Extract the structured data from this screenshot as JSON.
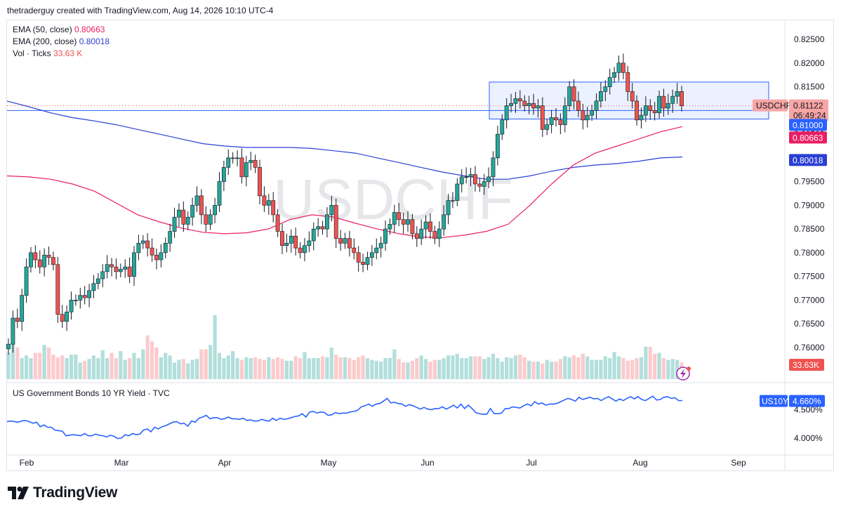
{
  "header": {
    "text": "thetraderguy created with TradingView.com, Aug 14, 2026 10:10 UTC-4"
  },
  "watermark": "USDCHF",
  "legend": {
    "ema50_label": "EMA (50, close)",
    "ema50_value": "0.80663",
    "ema200_label": "EMA (200, close)",
    "ema200_value": "0.80018",
    "vol_label": "Vol · Ticks",
    "vol_value": "33.63 K"
  },
  "indicator": {
    "title": "US Government Bonds 10 YR Yield · TVC"
  },
  "footer": {
    "brand": "TradingView"
  },
  "colors": {
    "up": "#26a69a",
    "down": "#ef5350",
    "ema50": "#e91e63",
    "ema200": "#2a3fd4",
    "box": "#2962ff",
    "yield": "#2962ff"
  },
  "chart_data": [
    {
      "type": "candlestick",
      "symbol": "USDCHF",
      "x_labels": [
        "Feb",
        "Mar",
        "Apr",
        "May",
        "Jun",
        "Jul",
        "Aug",
        "Sep"
      ],
      "y_ticks": [
        "0.82500",
        "0.82000",
        "0.81500",
        "0.81000",
        "0.80500",
        "0.80000",
        "0.79500",
        "0.79000",
        "0.78500",
        "0.78000",
        "0.77500",
        "0.77000",
        "0.76500",
        "0.76000"
      ],
      "ylim": [
        0.7585,
        0.8262
      ],
      "price_labels": {
        "symbol": "USDCHF",
        "last": "0.81122",
        "countdown": "06:49:24",
        "horizontal_line": "0.81000",
        "ema50": "0.80663",
        "ema200": "0.80018",
        "volume": "33.63K"
      },
      "horizontal_line": 0.81,
      "range_box": {
        "top": 0.816,
        "bottom": 0.8082
      },
      "closes": [
        0.7607,
        0.7662,
        0.7655,
        0.771,
        0.777,
        0.78,
        0.7785,
        0.777,
        0.7795,
        0.779,
        0.7775,
        0.767,
        0.7655,
        0.7675,
        0.77,
        0.77,
        0.771,
        0.7705,
        0.772,
        0.7735,
        0.7745,
        0.776,
        0.7775,
        0.777,
        0.776,
        0.7765,
        0.777,
        0.775,
        0.78,
        0.782,
        0.7825,
        0.781,
        0.7795,
        0.7785,
        0.78,
        0.782,
        0.7845,
        0.7875,
        0.789,
        0.786,
        0.7875,
        0.79,
        0.792,
        0.788,
        0.786,
        0.788,
        0.79,
        0.795,
        0.798,
        0.8,
        0.8,
        0.8,
        0.796,
        0.799,
        0.7995,
        0.798,
        0.792,
        0.79,
        0.791,
        0.788,
        0.7845,
        0.7815,
        0.782,
        0.7835,
        0.781,
        0.78,
        0.7815,
        0.7825,
        0.785,
        0.7855,
        0.785,
        0.788,
        0.79,
        0.783,
        0.782,
        0.783,
        0.781,
        0.78,
        0.778,
        0.7775,
        0.779,
        0.78,
        0.781,
        0.782,
        0.785,
        0.786,
        0.7885,
        0.787,
        0.786,
        0.787,
        0.784,
        0.783,
        0.785,
        0.7865,
        0.7845,
        0.783,
        0.785,
        0.788,
        0.791,
        0.791,
        0.7945,
        0.796,
        0.796,
        0.7965,
        0.7945,
        0.794,
        0.795,
        0.796,
        0.8,
        0.805,
        0.808,
        0.811,
        0.8115,
        0.8125,
        0.812,
        0.811,
        0.8115,
        0.8105,
        0.811,
        0.806,
        0.807,
        0.8085,
        0.808,
        0.807,
        0.811,
        0.815,
        0.812,
        0.81,
        0.808,
        0.809,
        0.81,
        0.812,
        0.814,
        0.815,
        0.817,
        0.818,
        0.82,
        0.818,
        0.814,
        0.812,
        0.808,
        0.809,
        0.811,
        0.81,
        0.8095,
        0.813,
        0.8105,
        0.8115,
        0.813,
        0.814,
        0.811
      ],
      "ema50": [
        0.7962,
        0.796,
        0.7955,
        0.7945,
        0.793,
        0.7905,
        0.788,
        0.7865,
        0.7852,
        0.7843,
        0.784,
        0.7842,
        0.785,
        0.787,
        0.788,
        0.7875,
        0.7862,
        0.785,
        0.784,
        0.7833,
        0.7832,
        0.7837,
        0.7845,
        0.786,
        0.79,
        0.7945,
        0.7985,
        0.801,
        0.8025,
        0.804,
        0.8055,
        0.8066
      ],
      "ema200": [
        0.812,
        0.8108,
        0.8095,
        0.8085,
        0.8078,
        0.807,
        0.806,
        0.805,
        0.804,
        0.803,
        0.8025,
        0.8022,
        0.8022,
        0.8022,
        0.802,
        0.8015,
        0.801,
        0.8,
        0.799,
        0.798,
        0.797,
        0.7962,
        0.7955,
        0.7955,
        0.7962,
        0.7972,
        0.798,
        0.7985,
        0.7988,
        0.7993,
        0.8,
        0.8002
      ],
      "volumes": [
        30,
        42,
        36,
        24,
        27,
        24,
        30,
        30,
        39,
        36,
        28,
        25,
        27,
        24,
        28,
        28,
        19,
        21,
        23,
        27,
        24,
        33,
        24,
        30,
        24,
        32,
        22,
        24,
        30,
        24,
        34,
        50,
        43,
        36,
        25,
        30,
        27,
        19,
        22,
        23,
        18,
        22,
        23,
        34,
        34,
        39,
        73,
        30,
        24,
        27,
        32,
        24,
        22,
        25,
        24,
        25,
        23,
        22,
        25,
        23,
        25,
        23,
        21,
        21,
        26,
        24,
        31,
        24,
        24,
        24,
        26,
        25,
        36,
        28,
        25,
        25,
        24,
        22,
        25,
        27,
        24,
        22,
        21,
        20,
        24,
        24,
        34,
        23,
        19,
        19,
        21,
        24,
        27,
        23,
        20,
        22,
        22,
        24,
        27,
        27,
        29,
        24,
        24,
        26,
        26,
        26,
        23,
        25,
        29,
        24,
        20,
        25,
        24,
        27,
        28,
        25,
        21,
        20,
        20,
        18,
        22,
        20,
        20,
        23,
        26,
        25,
        27,
        25,
        29,
        26,
        22,
        22,
        22,
        26,
        24,
        31,
        26,
        24,
        21,
        22,
        24,
        25,
        37,
        37,
        29,
        30,
        24,
        22,
        23,
        22,
        19
      ]
    },
    {
      "type": "line",
      "name": "US Government Bonds 10 YR Yield · TVC",
      "symbol": "US10Y",
      "last_value": "4.660%",
      "y_ticks": [
        "4.500%",
        "4.000%"
      ],
      "ylim": [
        3.75,
        4.84
      ],
      "values": [
        4.29,
        4.3,
        4.29,
        4.28,
        4.3,
        4.31,
        4.29,
        4.26,
        4.28,
        4.2,
        4.23,
        4.19,
        4.19,
        4.14,
        4.13,
        4.12,
        4.04,
        4.05,
        4.06,
        4.05,
        4.04,
        4.08,
        4.04,
        4.04,
        4.07,
        4.05,
        4.04,
        4.02,
        4.05,
        4.03,
        3.99,
        4.0,
        4.06,
        4.04,
        4.08,
        4.06,
        4.07,
        4.14,
        4.16,
        4.11,
        4.19,
        4.16,
        4.2,
        4.22,
        4.25,
        4.28,
        4.29,
        4.25,
        4.26,
        4.21,
        4.3,
        4.28,
        4.35,
        4.37,
        4.4,
        4.34,
        4.36,
        4.36,
        4.33,
        4.34,
        4.37,
        4.34,
        4.34,
        4.33,
        4.35,
        4.31,
        4.32,
        4.3,
        4.3,
        4.33,
        4.31,
        4.3,
        4.35,
        4.31,
        4.35,
        4.33,
        4.34,
        4.36,
        4.38,
        4.39,
        4.43,
        4.37,
        4.46,
        4.47,
        4.44,
        4.46,
        4.45,
        4.4,
        4.41,
        4.45,
        4.43,
        4.44,
        4.44,
        4.46,
        4.47,
        4.49,
        4.55,
        4.57,
        4.6,
        4.56,
        4.6,
        4.61,
        4.65,
        4.7,
        4.62,
        4.63,
        4.61,
        4.6,
        4.56,
        4.59,
        4.57,
        4.54,
        4.51,
        4.54,
        4.51,
        4.5,
        4.52,
        4.52,
        4.55,
        4.51,
        4.54,
        4.58,
        4.53,
        4.6,
        4.52,
        4.58,
        4.52,
        4.45,
        4.43,
        4.42,
        4.42,
        4.52,
        4.43,
        4.43,
        4.44,
        4.52,
        4.52,
        4.55,
        4.54,
        4.53,
        4.57,
        4.6,
        4.57,
        4.64,
        4.6,
        4.62,
        4.58,
        4.6,
        4.6,
        4.61,
        4.64,
        4.67,
        4.7,
        4.68,
        4.65,
        4.72,
        4.68,
        4.7,
        4.72,
        4.69,
        4.7,
        4.66,
        4.7,
        4.73,
        4.69,
        4.65,
        4.69,
        4.66,
        4.7,
        4.73,
        4.69,
        4.73,
        4.68,
        4.66,
        4.7,
        4.74,
        4.67,
        4.68,
        4.72,
        4.73,
        4.7,
        4.71,
        4.66,
        4.66
      ]
    }
  ]
}
